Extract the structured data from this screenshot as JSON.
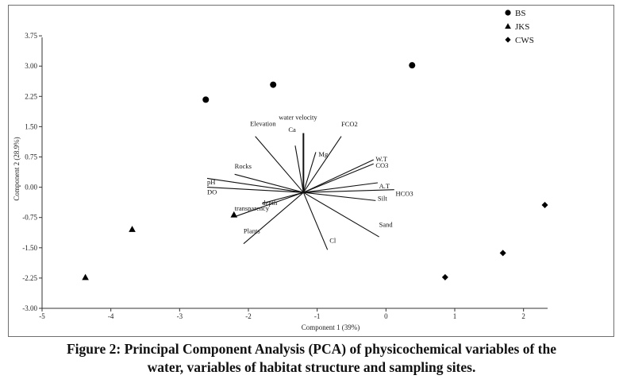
{
  "caption": {
    "line1": "Figure 2: Principal Component Analysis (PCA) of physicochemical variables of the",
    "line2": "water, variables of habitat structure and sampling sites."
  },
  "chart_data": {
    "type": "scatter",
    "title": "",
    "xlabel": "Component 1  (39%)",
    "ylabel": "Component 2  (28.9%)",
    "xlim": [
      -5,
      2.35
    ],
    "ylim": [
      -3.0,
      4.5
    ],
    "xticks": [
      -5,
      -4,
      -3,
      -2,
      -1,
      0,
      1,
      2
    ],
    "yticks": [
      -3.0,
      -2.25,
      -1.5,
      -0.75,
      0.0,
      0.75,
      1.5,
      2.25,
      3.0,
      3.75
    ],
    "ytick_labels": [
      "-3.00",
      "-2.25",
      "-1.50",
      "-0.75",
      "0.00",
      "0.75",
      "1.50",
      "2.25",
      "3.00",
      "3.75"
    ],
    "xtick_labels": [
      "-5",
      "-4",
      "-3",
      "-2",
      "-1",
      "0",
      "1",
      "2"
    ],
    "legend_position": "top-right",
    "series": [
      {
        "name": "BS",
        "marker": "circle",
        "points": [
          [
            -2.62,
            2.17
          ],
          [
            -1.64,
            2.54
          ],
          [
            0.38,
            3.02
          ]
        ]
      },
      {
        "name": "JKS",
        "marker": "triangle",
        "points": [
          [
            -4.37,
            -2.23
          ],
          [
            -3.69,
            -1.04
          ],
          [
            -2.21,
            -0.68
          ]
        ]
      },
      {
        "name": "CWS",
        "marker": "diamond",
        "points": [
          [
            0.86,
            -2.23
          ],
          [
            1.7,
            -1.63
          ],
          [
            2.31,
            -0.44
          ]
        ]
      }
    ],
    "loadings_origin": [
      -1.2,
      -0.13
    ],
    "loadings": [
      {
        "label": "water velocity",
        "x": -1.2,
        "y": 1.34,
        "lx": -1.28,
        "ly": 1.73,
        "anchor": "middle"
      },
      {
        "label": "Elevation",
        "x": -1.9,
        "y": 1.26,
        "lx": -1.6,
        "ly": 1.58,
        "anchor": "end"
      },
      {
        "label": "Ca",
        "x": -1.32,
        "y": 1.03,
        "lx": -1.31,
        "ly": 1.43,
        "anchor": "end"
      },
      {
        "label": "Mg",
        "x": -1.02,
        "y": 0.87,
        "lx": -0.98,
        "ly": 0.82,
        "anchor": "start"
      },
      {
        "label": "FCO2",
        "x": -0.65,
        "y": 1.26,
        "lx": -0.65,
        "ly": 1.57,
        "anchor": "start"
      },
      {
        "label": "W.T",
        "x": -0.18,
        "y": 0.68,
        "lx": -0.15,
        "ly": 0.7,
        "anchor": "start"
      },
      {
        "label": "CO3",
        "x": -0.18,
        "y": 0.58,
        "lx": -0.15,
        "ly": 0.54,
        "anchor": "start"
      },
      {
        "label": "A.T",
        "x": -0.12,
        "y": 0.11,
        "lx": -0.1,
        "ly": 0.03,
        "anchor": "start"
      },
      {
        "label": "HCO3",
        "x": 0.12,
        "y": -0.06,
        "lx": 0.14,
        "ly": -0.16,
        "anchor": "start"
      },
      {
        "label": "Silt",
        "x": -0.15,
        "y": -0.33,
        "lx": -0.12,
        "ly": -0.27,
        "anchor": "start"
      },
      {
        "label": "Sand",
        "x": -0.1,
        "y": -1.23,
        "lx": -0.1,
        "ly": -0.92,
        "anchor": "start"
      },
      {
        "label": "Cl",
        "x": -0.85,
        "y": -1.55,
        "lx": -0.82,
        "ly": -1.32,
        "anchor": "start"
      },
      {
        "label": "Plants",
        "x": -2.07,
        "y": -1.4,
        "lx": -2.07,
        "ly": -1.08,
        "anchor": "start"
      },
      {
        "label": "transparency",
        "x": -2.2,
        "y": -0.73,
        "lx": -2.2,
        "ly": -0.52,
        "anchor": "start"
      },
      {
        "label": "depth",
        "x": -1.8,
        "y": -0.4,
        "lx": -1.8,
        "ly": -0.38,
        "anchor": "start"
      },
      {
        "label": "Rocks",
        "x": -2.2,
        "y": 0.32,
        "lx": -2.2,
        "ly": 0.52,
        "anchor": "start"
      },
      {
        "label": "pH",
        "x": -2.6,
        "y": 0.22,
        "lx": -2.6,
        "ly": 0.13,
        "anchor": "start"
      },
      {
        "label": "DO",
        "x": -2.6,
        "y": 0.0,
        "lx": -2.6,
        "ly": -0.12,
        "anchor": "start"
      }
    ]
  }
}
